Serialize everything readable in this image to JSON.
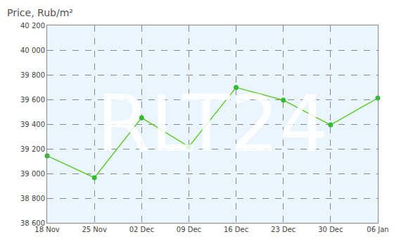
{
  "chart_data": {
    "type": "line",
    "ylabel": "Price, Rub/m²",
    "annotations": [
      {
        "text": "RLT24"
      }
    ],
    "categories": [
      "18 Nov",
      "25 Nov",
      "02 Dec",
      "09 Dec",
      "16 Dec",
      "23 Dec",
      "30 Dec",
      "06 Jan"
    ],
    "values": [
      39143,
      38966,
      39451,
      39217,
      39697,
      39594,
      39394,
      39611
    ],
    "color": "#66cc33",
    "marker": "circle",
    "line_style": "solid",
    "grid": true,
    "ylim": [
      38600,
      40200
    ],
    "yticks": [
      {
        "value": 38600,
        "label": "38 600"
      },
      {
        "value": 38800,
        "label": "38 800"
      },
      {
        "value": 39000,
        "label": "39 000"
      },
      {
        "value": 39200,
        "label": "39 200"
      },
      {
        "value": 39400,
        "label": "39 400"
      },
      {
        "value": 39600,
        "label": "39 600"
      },
      {
        "value": 39800,
        "label": "39 800"
      },
      {
        "value": 40000,
        "label": "40 000"
      },
      {
        "value": 40200,
        "label": "40 200"
      }
    ]
  }
}
